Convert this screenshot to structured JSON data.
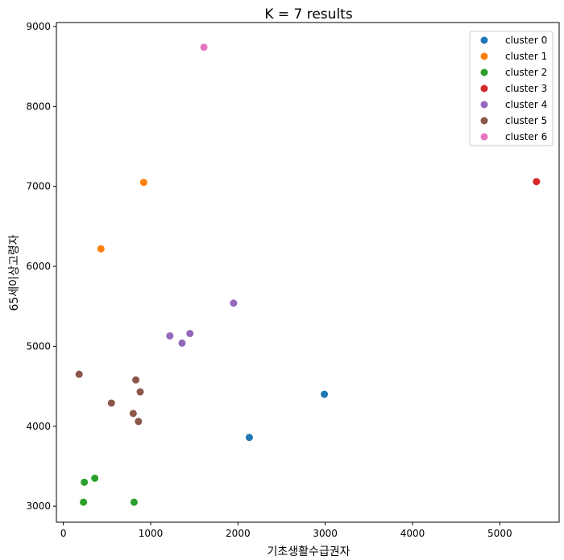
{
  "chart_data": {
    "type": "scatter",
    "title": "K = 7 results",
    "xlabel": "기초생활수급권자",
    "ylabel": "65세이상고령자",
    "xlim": [
      -80,
      5680
    ],
    "ylim": [
      2800,
      9050
    ],
    "xticks": [
      0,
      1000,
      2000,
      3000,
      4000,
      5000
    ],
    "yticks": [
      3000,
      4000,
      5000,
      6000,
      7000,
      8000,
      9000
    ],
    "grid": false,
    "legend_position": "top-right",
    "series": [
      {
        "name": "cluster 0",
        "color": "#1f77b4",
        "points": [
          [
            2990,
            4400
          ],
          [
            2130,
            3860
          ]
        ]
      },
      {
        "name": "cluster 1",
        "color": "#ff7f0e",
        "points": [
          [
            920,
            7050
          ],
          [
            430,
            6220
          ]
        ]
      },
      {
        "name": "cluster 2",
        "color": "#2ca02c",
        "points": [
          [
            240,
            3300
          ],
          [
            360,
            3350
          ],
          [
            230,
            3050
          ],
          [
            810,
            3050
          ]
        ]
      },
      {
        "name": "cluster 3",
        "color": "#d62728",
        "points": [
          [
            5420,
            7060
          ]
        ]
      },
      {
        "name": "cluster 4",
        "color": "#9467bd",
        "points": [
          [
            1950,
            5540
          ],
          [
            1220,
            5130
          ],
          [
            1450,
            5160
          ],
          [
            1360,
            5040
          ]
        ]
      },
      {
        "name": "cluster 5",
        "color": "#8c564b",
        "points": [
          [
            180,
            4650
          ],
          [
            830,
            4580
          ],
          [
            880,
            4430
          ],
          [
            550,
            4290
          ],
          [
            800,
            4160
          ],
          [
            860,
            4060
          ]
        ]
      },
      {
        "name": "cluster 6",
        "color": "#e377c2",
        "points": [
          [
            1610,
            8740
          ]
        ]
      }
    ]
  }
}
